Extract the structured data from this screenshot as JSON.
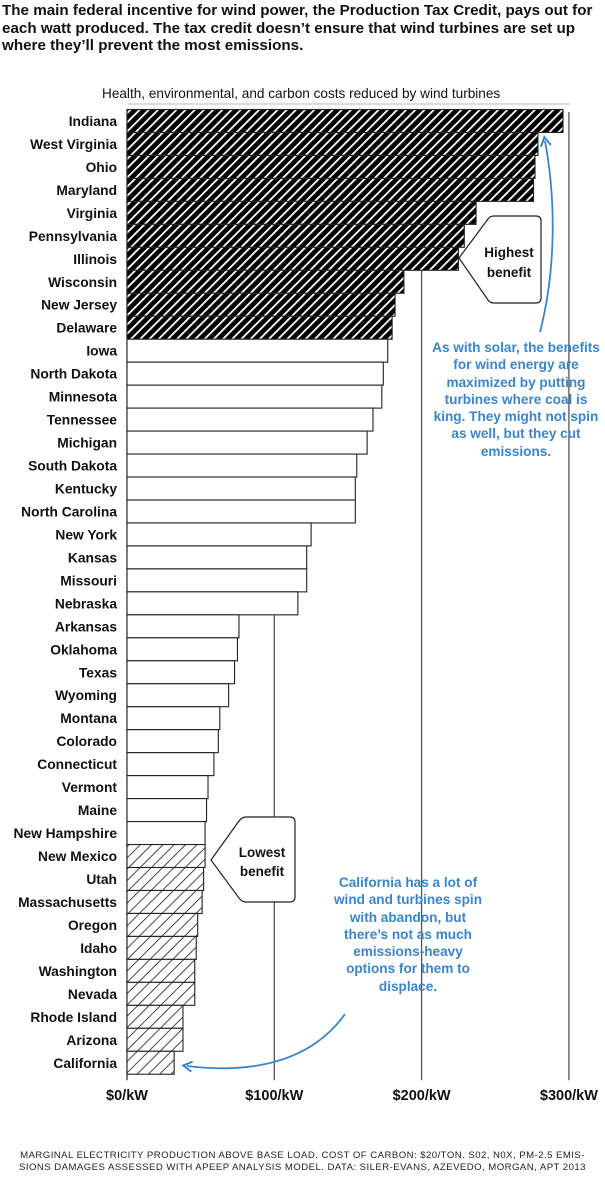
{
  "headline": "The main federal incentive for wind power, the Production Tax Credit, pays out for each watt produced. The tax credit doesn’t ensure that wind turbines are set up where they’ll prevent the most emissions.",
  "footnote": {
    "line1": "MARGINAL ELECTRICITY PRODUCTION ABOVE BASE LOAD. COST OF CARBON: $20/TON. S02, N0X, PM-2.5 EMIS-",
    "line2": "SIONS DAMAGES ASSESSED WITH APEEP ANALYSIS MODEL. DATA: SILER-EVANS, AZEVEDO, MORGAN, APT 2013"
  },
  "annotations": {
    "highest_callout": [
      "Highest",
      "benefit"
    ],
    "lowest_callout": [
      "Lowest",
      "benefit"
    ],
    "solar_note": "As with solar, the benefits for wind energy are maximized by putting turbines where coal is king. They might not spin as well, but they cut emissions.",
    "california_note": "California has a lot of wind and turbines spin with abandon, but there’s not as much emissions-heavy options for them to displace."
  },
  "colors": {
    "accent_blue": "#3a86c8",
    "bar_dark": "#000000",
    "bar_outline": "#222222",
    "gridline": "#555555"
  },
  "chart_data": {
    "type": "bar",
    "orientation": "horizontal",
    "title": "Health, environmental, and carbon costs reduced by wind turbines",
    "xlabel": "",
    "ylabel": "",
    "xlim": [
      0,
      300
    ],
    "x_ticks": [
      0,
      100,
      200,
      300
    ],
    "x_tick_labels": [
      "$0/kW",
      "$100/kW",
      "$200/kW",
      "$300/kW"
    ],
    "grid": "vertical at $100, $200, $300",
    "legend": "none (groups indicated by fill pattern and callouts)",
    "groups": {
      "highest": "dense dark diagonal hatch (top 10)",
      "middle": "white fill",
      "lowest": "light diagonal hatch (bottom 10)"
    },
    "categories": [
      "Indiana",
      "West Virginia",
      "Ohio",
      "Maryland",
      "Virginia",
      "Pennsylvania",
      "Illinois",
      "Wisconsin",
      "New Jersey",
      "Delaware",
      "Iowa",
      "North Dakota",
      "Minnesota",
      "Tennessee",
      "Michigan",
      "South Dakota",
      "Kentucky",
      "North Carolina",
      "New York",
      "Kansas",
      "Missouri",
      "Nebraska",
      "Arkansas",
      "Oklahoma",
      "Texas",
      "Wyoming",
      "Montana",
      "Colorado",
      "Connecticut",
      "Vermont",
      "Maine",
      "New Hampshire",
      "New Mexico",
      "Utah",
      "Massachusetts",
      "Oregon",
      "Idaho",
      "Washington",
      "Nevada",
      "Rhode Island",
      "Arizona",
      "California"
    ],
    "values": [
      296,
      279,
      277,
      276,
      237,
      229,
      225,
      188,
      182,
      180,
      177,
      174,
      173,
      167,
      163,
      156,
      155,
      155,
      125,
      122,
      122,
      116,
      76,
      75,
      73,
      69,
      63,
      62,
      59,
      55,
      54,
      53,
      53,
      52,
      51,
      48,
      47,
      46,
      46,
      38,
      38,
      32
    ],
    "group_of_each": [
      "highest",
      "highest",
      "highest",
      "highest",
      "highest",
      "highest",
      "highest",
      "highest",
      "highest",
      "highest",
      "middle",
      "middle",
      "middle",
      "middle",
      "middle",
      "middle",
      "middle",
      "middle",
      "middle",
      "middle",
      "middle",
      "middle",
      "middle",
      "middle",
      "middle",
      "middle",
      "middle",
      "middle",
      "middle",
      "middle",
      "middle",
      "middle",
      "lowest",
      "lowest",
      "lowest",
      "lowest",
      "lowest",
      "lowest",
      "lowest",
      "lowest",
      "lowest",
      "lowest"
    ]
  }
}
